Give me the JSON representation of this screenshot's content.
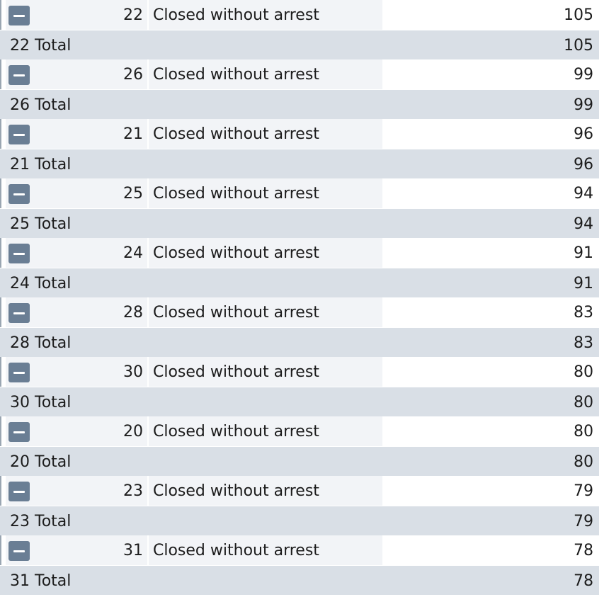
{
  "groups": [
    {
      "district": "22",
      "disposition": "Closed without arrest",
      "count": "105",
      "total_label": "22 Total",
      "total_count": "105"
    },
    {
      "district": "26",
      "disposition": "Closed without arrest",
      "count": "99",
      "total_label": "26 Total",
      "total_count": "99"
    },
    {
      "district": "21",
      "disposition": "Closed without arrest",
      "count": "96",
      "total_label": "21 Total",
      "total_count": "96"
    },
    {
      "district": "25",
      "disposition": "Closed without arrest",
      "count": "94",
      "total_label": "25 Total",
      "total_count": "94"
    },
    {
      "district": "24",
      "disposition": "Closed without arrest",
      "count": "91",
      "total_label": "24 Total",
      "total_count": "91"
    },
    {
      "district": "28",
      "disposition": "Closed without arrest",
      "count": "83",
      "total_label": "28 Total",
      "total_count": "83"
    },
    {
      "district": "30",
      "disposition": "Closed without arrest",
      "count": "80",
      "total_label": "30 Total",
      "total_count": "80"
    },
    {
      "district": "20",
      "disposition": "Closed without arrest",
      "count": "80",
      "total_label": "20 Total",
      "total_count": "80"
    },
    {
      "district": "23",
      "disposition": "Closed without arrest",
      "count": "79",
      "total_label": "23 Total",
      "total_count": "79"
    },
    {
      "district": "31",
      "disposition": "Closed without arrest",
      "count": "78",
      "total_label": "31 Total",
      "total_count": "78"
    }
  ],
  "colors": {
    "collapse_button": "#6a7e94",
    "total_row": "#d9dfe6",
    "detail_cell": "#f2f4f7"
  },
  "icons": {
    "collapse": "minus-icon"
  }
}
